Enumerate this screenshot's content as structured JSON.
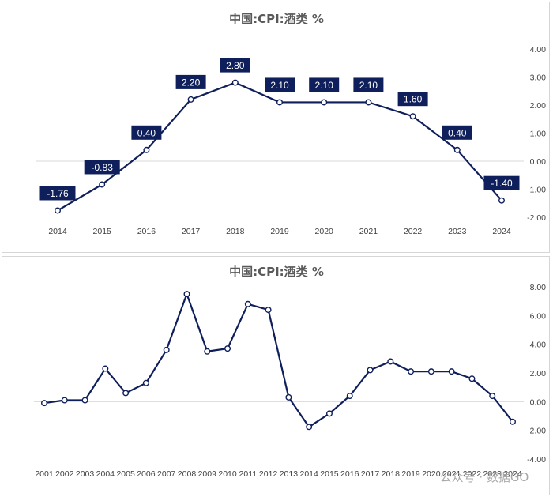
{
  "chart_data": [
    {
      "type": "line",
      "title": "中国:CPI:酒类 %",
      "x": [
        "2014",
        "2015",
        "2016",
        "2017",
        "2018",
        "2019",
        "2020",
        "2021",
        "2022",
        "2023",
        "2024"
      ],
      "series": [
        {
          "values": [
            -1.76,
            -0.83,
            0.4,
            2.2,
            2.8,
            2.1,
            2.1,
            2.1,
            1.6,
            0.4,
            -1.4
          ]
        }
      ],
      "data_labels": [
        "-1.76",
        "-0.83",
        "0.40",
        "2.20",
        "2.80",
        "2.10",
        "2.10",
        "2.10",
        "1.60",
        "0.40",
        "-1.40"
      ],
      "ylim": [
        -2,
        4
      ],
      "y_ticks": [
        4,
        3,
        2,
        1,
        0,
        -1,
        -2
      ],
      "y_tick_labels": [
        "4.00",
        "3.00",
        "2.00",
        "1.00",
        "0.00",
        "-1.00",
        "-2.00"
      ],
      "y_axis_side": "right",
      "grid": false,
      "line_color": "#0f1f5c",
      "label_box_color": "#0f1f5c"
    },
    {
      "type": "line",
      "title": "中国:CPI:酒类 %",
      "x": [
        "2001",
        "2002",
        "2003",
        "2004",
        "2005",
        "2006",
        "2007",
        "2008",
        "2009",
        "2010",
        "2011",
        "2012",
        "2013",
        "2014",
        "2015",
        "2016",
        "2017",
        "2018",
        "2019",
        "2020",
        "2021",
        "2022",
        "2023",
        "2024"
      ],
      "series": [
        {
          "values": [
            -0.1,
            0.1,
            0.1,
            2.3,
            0.6,
            1.3,
            3.6,
            7.5,
            3.5,
            3.7,
            6.8,
            6.4,
            0.3,
            -1.76,
            -0.83,
            0.4,
            2.2,
            2.8,
            2.1,
            2.1,
            2.1,
            1.6,
            0.4,
            -1.4
          ]
        }
      ],
      "ylim": [
        -4,
        8
      ],
      "y_ticks": [
        8,
        6,
        4,
        2,
        0,
        -2,
        -4
      ],
      "y_tick_labels": [
        "8.00",
        "6.00",
        "4.00",
        "2.00",
        "0.00",
        "-2.00",
        "-4.00"
      ],
      "y_axis_side": "right",
      "grid": false,
      "line_color": "#0f1f5c"
    }
  ],
  "watermark": "公众号 · 数据GO"
}
